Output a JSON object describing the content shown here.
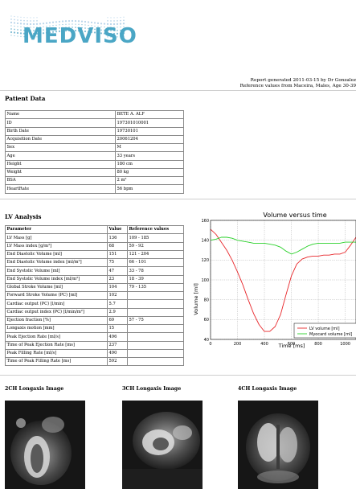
{
  "logo": {
    "text": "MEDVISO"
  },
  "report": {
    "generated": "Report generated 2011-03-15 by Dr Gonzalez",
    "reference": "Reference values from Maceira, Males, Age 30-39"
  },
  "patient": {
    "title": "Patient Data",
    "rows": [
      [
        "Name",
        "BETE A. ALF"
      ],
      [
        "ID",
        "197301010001"
      ],
      [
        "Birth Date",
        "19730101"
      ],
      [
        "Acquisition Date",
        "20061204"
      ],
      [
        "Sex",
        "M"
      ],
      [
        "Age",
        "33 years"
      ],
      [
        "Height",
        "180 cm"
      ],
      [
        "Weight",
        "80 kg"
      ],
      [
        "BSA",
        "2 m²"
      ],
      [
        "HeartRate",
        "56 bpm"
      ]
    ]
  },
  "lv": {
    "title": "LV Analysis",
    "headers": [
      "Parameter",
      "Value",
      "Reference values"
    ],
    "rows": [
      [
        "LV Mass [g]",
        "136",
        "109 - 185"
      ],
      [
        "LV Mass index [g/m²]",
        "68",
        "59 - 92"
      ],
      [
        "End Diastolic Volume [ml]",
        "151",
        "121 - 204"
      ],
      [
        "End Diastolic Volume index [ml/m²]",
        "75",
        "66 - 101"
      ],
      [
        "End Systolic Volume [ml]",
        "47",
        "33 - 78"
      ],
      [
        "End Systolic Volume index [ml/m²]",
        "23",
        "18 - 39"
      ],
      [
        "Global Stroke Volume [ml]",
        "104",
        "79 - 135"
      ],
      [
        "Forward Stroke Volume (PC) [ml]",
        "102",
        ""
      ],
      [
        "Cardiac output (PC) [l/min]",
        "5.7",
        ""
      ],
      [
        "Cardiac output index (PC) [l/min/m²]",
        "2.9",
        ""
      ],
      [
        "Ejection fraction [%]",
        "69",
        "57 - 75"
      ],
      [
        "Longaxis motion [mm]",
        "15",
        ""
      ],
      [
        "Peak Ejection Rate [ml/s]",
        "496",
        ""
      ],
      [
        "Time of Peak Ejection Rate [ms]",
        "237",
        ""
      ],
      [
        "Peak Filling Rate [ml/s]",
        "490",
        ""
      ],
      [
        "Time of Peak Filling Rate [ms]",
        "592",
        ""
      ]
    ]
  },
  "chart_data": {
    "type": "line",
    "title": "Volume versus time",
    "xlabel": "Time [ms]",
    "ylabel": "Volume [ml]",
    "xlim": [
      0,
      1080
    ],
    "ylim": [
      40,
      160
    ],
    "xticks": [
      0,
      200,
      400,
      600,
      800,
      1000
    ],
    "yticks": [
      40,
      60,
      80,
      100,
      120,
      140,
      160
    ],
    "grid": true,
    "legend_position": "bottom-right",
    "series": [
      {
        "name": "LV volume [ml]",
        "color": "#e8262a",
        "x": [
          0,
          40,
          80,
          120,
          160,
          200,
          240,
          280,
          320,
          360,
          400,
          440,
          480,
          520,
          560,
          600,
          640,
          680,
          720,
          760,
          800,
          840,
          880,
          920,
          960,
          1000,
          1040,
          1080
        ],
        "y": [
          151,
          146,
          138,
          130,
          120,
          108,
          95,
          80,
          66,
          55,
          48,
          48,
          53,
          65,
          85,
          104,
          116,
          121,
          123,
          124,
          124,
          125,
          125,
          126,
          126,
          128,
          135,
          143
        ]
      },
      {
        "name": "Myocard volume [ml]",
        "color": "#2ad12a",
        "x": [
          0,
          40,
          80,
          120,
          160,
          200,
          240,
          280,
          320,
          360,
          400,
          440,
          480,
          520,
          560,
          600,
          640,
          680,
          720,
          760,
          800,
          840,
          880,
          920,
          960,
          1000,
          1040,
          1080
        ],
        "y": [
          140,
          141,
          143,
          143,
          142,
          140,
          139,
          138,
          137,
          137,
          137,
          136,
          135,
          133,
          129,
          126,
          128,
          131,
          134,
          136,
          137,
          137,
          137,
          137,
          137,
          138,
          138,
          138
        ]
      }
    ]
  },
  "images": [
    {
      "label": "2CH Longaxis Image"
    },
    {
      "label": "3CH Longaxis Image"
    },
    {
      "label": "4CH Longaxis Image"
    }
  ]
}
